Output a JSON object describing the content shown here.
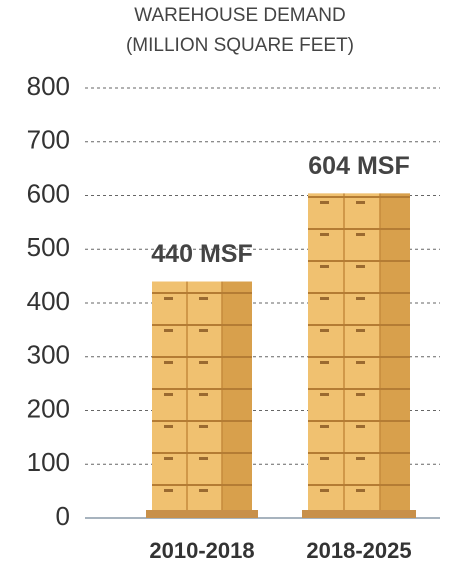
{
  "chart_data": {
    "type": "bar",
    "title": "WAREHOUSE DEMAND",
    "subtitle": "(MILLION SQUARE FEET)",
    "categories": [
      "2010-2018",
      "2018-2025"
    ],
    "values": [
      440,
      604
    ],
    "value_labels": [
      "440 MSF",
      "604 MSF"
    ],
    "color": "#f0c170",
    "ylim": [
      0,
      800
    ],
    "yticks": [
      0,
      100,
      200,
      300,
      400,
      500,
      600,
      700,
      800
    ],
    "grid": true
  }
}
